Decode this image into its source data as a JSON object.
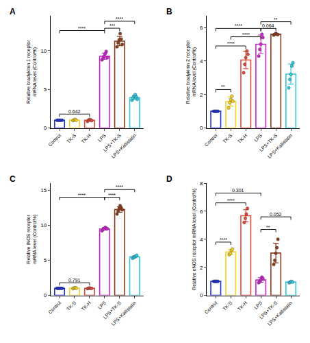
{
  "chart_data": [
    {
      "type": "bar",
      "title": "A",
      "y_label": "Relative bradykinin 1 receptor\nmRNA level (Control%)",
      "categories": [
        "Control",
        "TK-S",
        "TK-H",
        "LPS",
        "LPS+TK-S",
        "LPS+Kallistatin"
      ],
      "colors": [
        "#1b2fd6",
        "#f2d21b",
        "#e0463a",
        "#cc22cc",
        "#8c3a1c",
        "#2ec8dc"
      ],
      "values": [
        1.0,
        1.03,
        0.99,
        9.28,
        11.23,
        3.93
      ],
      "error": [
        0.02,
        0.06,
        0.1,
        0.4,
        0.6,
        0.26
      ],
      "points": [
        [
          1,
          1,
          1,
          1,
          1,
          1
        ],
        [
          0.95,
          1.05,
          1.1,
          1.0
        ],
        [
          0.85,
          1.0,
          1.1,
          1.05,
          0.95
        ],
        [
          8.8,
          9.0,
          9.3,
          9.6,
          9.9,
          9.1
        ],
        [
          10.5,
          11.0,
          11.4,
          12.2,
          11.5,
          10.8
        ],
        [
          3.6,
          3.9,
          4.1,
          4.3,
          4.0,
          3.7
        ]
      ],
      "ylim": [
        0,
        14.5
      ],
      "yticks": [
        0,
        5,
        10
      ],
      "grid": false,
      "brackets": [
        {
          "from": 0,
          "to": 2,
          "y": 1.8,
          "text": "0.642"
        },
        {
          "from": 0,
          "to": 3,
          "y": 12.6,
          "text": "****"
        },
        {
          "from": 3,
          "to": 4,
          "y": 12.9,
          "text": "***"
        },
        {
          "from": 3,
          "to": 5,
          "y": 13.8,
          "text": "****"
        }
      ]
    },
    {
      "type": "bar",
      "title": "B",
      "y_label": "Relative bradykinin 2 receptor\nmRNA level (Control%)",
      "categories": [
        "Control",
        "TK-S",
        "TK-H",
        "LPS",
        "LPS+TK-S",
        "LPS+Kallistatin"
      ],
      "colors": [
        "#1b2fd6",
        "#f2d21b",
        "#e0463a",
        "#cc22cc",
        "#8c3a1c",
        "#2ec8dc"
      ],
      "values": [
        1.0,
        1.58,
        4.06,
        5.0,
        5.6,
        3.22
      ],
      "error": [
        0.02,
        0.27,
        0.52,
        0.55,
        0.04,
        0.6
      ],
      "points": [
        [
          1,
          1,
          1,
          1,
          1
        ],
        [
          1.2,
          1.5,
          1.7,
          1.9,
          1.6
        ],
        [
          3.3,
          3.8,
          4.2,
          4.6,
          4.4
        ],
        [
          4.3,
          4.7,
          5.0,
          5.6,
          5.4
        ],
        [
          5.55,
          5.6,
          5.65,
          5.6,
          5.58
        ],
        [
          2.4,
          2.9,
          3.2,
          3.7,
          3.9
        ]
      ],
      "ylim": [
        0,
        6.7
      ],
      "yticks": [
        0,
        2,
        4,
        6
      ],
      "grid": false,
      "brackets": [
        {
          "from": 0,
          "to": 1,
          "y": 2.3,
          "text": "**"
        },
        {
          "from": 0,
          "to": 2,
          "y": 4.9,
          "text": "****"
        },
        {
          "from": 1,
          "to": 3,
          "y": 5.45,
          "text": "****"
        },
        {
          "from": 0,
          "to": 3,
          "y": 5.95,
          "text": "****"
        },
        {
          "from": 3,
          "to": 4,
          "y": 5.95,
          "text": "0.064"
        },
        {
          "from": 3,
          "to": 5,
          "y": 6.35,
          "text": "**"
        }
      ]
    },
    {
      "type": "bar",
      "title": "C",
      "y_label": "Relative iNOS receptor\nmRNA level (Control%)",
      "categories": [
        "Control",
        "TK-S",
        "TK-H",
        "LPS",
        "LPS+TK-S",
        "LPS+Kallistatin"
      ],
      "colors": [
        "#1b2fd6",
        "#f2d21b",
        "#e0463a",
        "#cc22cc",
        "#8c3a1c",
        "#2ec8dc"
      ],
      "values": [
        1.0,
        1.03,
        1.0,
        9.48,
        12.25,
        5.5
      ],
      "error": [
        0.02,
        0.06,
        0.04,
        0.17,
        0.4,
        0.16
      ],
      "points": [
        [
          1,
          1,
          1,
          1,
          1,
          1
        ],
        [
          0.95,
          1.05,
          1.1,
          1.0
        ],
        [
          0.95,
          1.0,
          1.05,
          1.0,
          1.0
        ],
        [
          9.2,
          9.4,
          9.5,
          9.7,
          9.6,
          9.5
        ],
        [
          11.6,
          12.0,
          12.4,
          12.8,
          12.5,
          12.2
        ],
        [
          5.3,
          5.4,
          5.5,
          5.6,
          5.7
        ]
      ],
      "ylim": [
        0,
        16
      ],
      "yticks": [
        0,
        5,
        10,
        15
      ],
      "grid": false,
      "brackets": [
        {
          "from": 0,
          "to": 2,
          "y": 1.8,
          "text": "0.791"
        },
        {
          "from": 0,
          "to": 3,
          "y": 14.0,
          "text": "****"
        },
        {
          "from": 3,
          "to": 4,
          "y": 14.0,
          "text": "****"
        },
        {
          "from": 3,
          "to": 5,
          "y": 15.1,
          "text": "****"
        }
      ]
    },
    {
      "type": "bar",
      "title": "D",
      "y_label": "Relative eNOS receptor mRNA level (Control%)",
      "categories": [
        "Control",
        "TK-S",
        "TK-H",
        "LPS",
        "LPS+TK-S",
        "LPS+Kallistatin"
      ],
      "colors": [
        "#1b2fd6",
        "#f2d21b",
        "#e0463a",
        "#cc22cc",
        "#8c3a1c",
        "#2ec8dc"
      ],
      "values": [
        1.0,
        3.1,
        5.68,
        1.1,
        3.02,
        0.95
      ],
      "error": [
        0.02,
        0.18,
        0.43,
        0.16,
        0.7,
        0.04
      ],
      "points": [
        [
          1,
          1,
          1,
          1,
          1
        ],
        [
          2.9,
          3.0,
          3.2,
          3.3
        ],
        [
          5.2,
          5.5,
          5.8,
          6.2
        ],
        [
          0.9,
          1.0,
          1.1,
          1.3,
          1.2
        ],
        [
          2.2,
          2.5,
          3.0,
          3.4,
          4.0
        ],
        [
          0.9,
          0.95,
          1.0,
          0.95
        ]
      ],
      "ylim": [
        0,
        8
      ],
      "yticks": [
        0,
        2,
        4,
        6,
        8
      ],
      "grid": false,
      "brackets": [
        {
          "from": 0,
          "to": 1,
          "y": 3.8,
          "text": "****"
        },
        {
          "from": 0,
          "to": 2,
          "y": 6.6,
          "text": "****"
        },
        {
          "from": 0,
          "to": 3,
          "y": 7.3,
          "text": "0.301"
        },
        {
          "from": 3,
          "to": 4,
          "y": 4.7,
          "text": "**"
        },
        {
          "from": 3,
          "to": 5,
          "y": 5.6,
          "text": "0.052"
        }
      ]
    }
  ]
}
